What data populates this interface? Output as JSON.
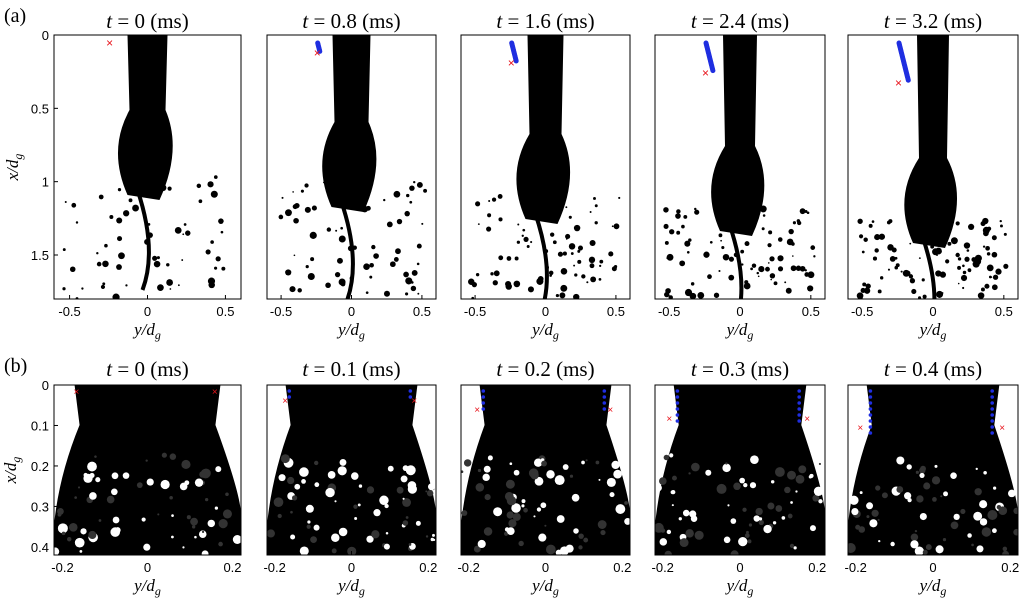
{
  "figure": {
    "panel_a_label": "(a)",
    "panel_b_label": "(b)",
    "time_symbol": "t",
    "time_unit": " (ms)",
    "xlabel": "y/d",
    "xlabel_sub": "g",
    "ylabel": "x/d",
    "ylabel_sub": "g",
    "colors": {
      "liquid": "#000000",
      "track": "#1f2ee0",
      "marker": "#e8121a",
      "background": "#ffffff"
    }
  },
  "rows": [
    {
      "id": "a",
      "times": [
        "0",
        "0.8",
        "1.6",
        "2.4",
        "3.2"
      ],
      "x_ticks": [
        "-0.5",
        "0",
        "0.5"
      ],
      "y_ticks": [
        "0",
        "0.5",
        "1",
        "1.5"
      ]
    },
    {
      "id": "b",
      "times": [
        "0",
        "0.1",
        "0.2",
        "0.3",
        "0.4"
      ],
      "x_ticks": [
        "-0.2",
        "0",
        "0.2"
      ],
      "y_ticks": [
        "0",
        "0.1",
        "0.2",
        "0.3",
        "0.4"
      ]
    }
  ]
}
